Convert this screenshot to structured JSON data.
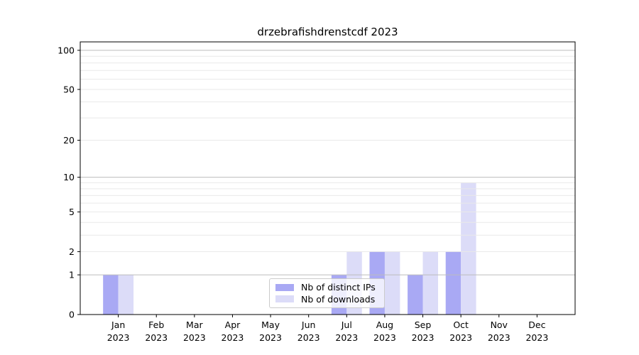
{
  "title": "drzebrafishdrenstcdf 2023",
  "colors": {
    "bar_distinct_ips": "#a9a9f4",
    "bar_downloads": "#dcdcf8",
    "grid_major": "#bdbdbd",
    "grid_minor": "#e9e9e9",
    "axis": "#000000",
    "text": "#000000",
    "legend_border": "#cbcbcb"
  },
  "chart_data": {
    "type": "bar",
    "title": "drzebrafishdrenstcdf 2023",
    "categories": [
      "Jan 2023",
      "Feb 2023",
      "Mar 2023",
      "Apr 2023",
      "May 2023",
      "Jun 2023",
      "Jul 2023",
      "Aug 2023",
      "Sep 2023",
      "Oct 2023",
      "Nov 2023",
      "Dec 2023"
    ],
    "series": [
      {
        "name": "Nb of distinct IPs",
        "color": "#a9a9f4",
        "values": [
          1,
          0,
          0,
          0,
          0,
          0,
          1,
          2,
          1,
          2,
          0,
          0
        ]
      },
      {
        "name": "Nb of downloads",
        "color": "#dcdcf8",
        "values": [
          1,
          0,
          0,
          0,
          0,
          0,
          2,
          2,
          2,
          9,
          0,
          0
        ]
      }
    ],
    "xlabel": "",
    "ylabel": "",
    "yscale": "log1p",
    "ylim": [
      0,
      116
    ],
    "yticks": [
      0,
      1,
      2,
      5,
      10,
      20,
      50,
      100
    ],
    "major_gridlines": [
      1,
      10,
      100
    ],
    "minor_gridlines": [
      2,
      3,
      4,
      5,
      6,
      7,
      8,
      9,
      20,
      30,
      40,
      50,
      60,
      70,
      80,
      90
    ],
    "grid": true,
    "grid_on_top": true,
    "legend_position": "lower center",
    "bar_group_width": 0.8
  }
}
